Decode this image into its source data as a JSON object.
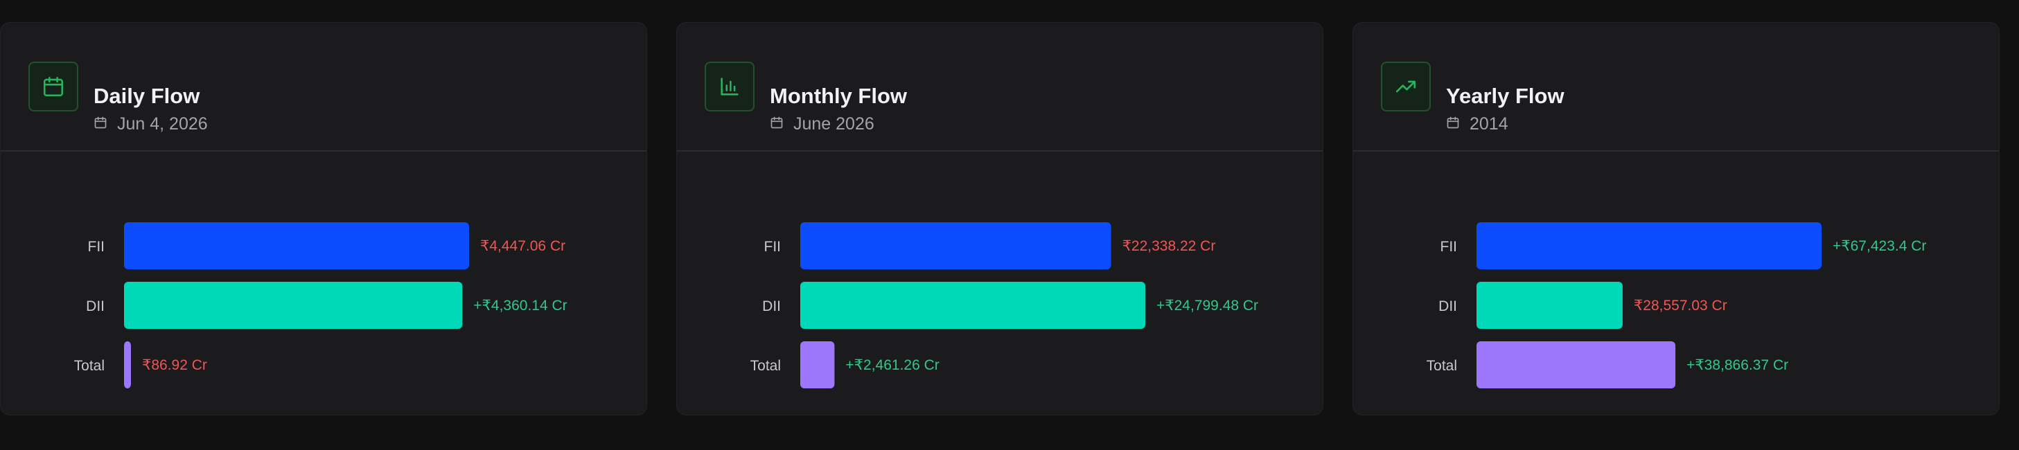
{
  "colors": {
    "fii": "#0b4cff",
    "dii": "#00d9b8",
    "total": "#9c77fb",
    "positive": "#2fc98b",
    "negative": "#ef5656"
  },
  "cards": [
    {
      "title": "Daily Flow",
      "subtitle": "Jun 4, 2026",
      "icon": "calendar-icon"
    },
    {
      "title": "Monthly Flow",
      "subtitle": "June 2026",
      "icon": "bar-chart-icon"
    },
    {
      "title": "Yearly Flow",
      "subtitle": "2014",
      "icon": "trending-up-icon"
    }
  ],
  "chart_data": [
    {
      "type": "bar",
      "orientation": "horizontal",
      "categories": [
        "FII",
        "DII",
        "Total"
      ],
      "values": [
        -4447.06,
        4360.14,
        -86.92
      ],
      "value_labels": [
        "₹4,447.06 Cr",
        "+₹4,360.14 Cr",
        "₹86.92 Cr"
      ],
      "unit": "Cr"
    },
    {
      "type": "bar",
      "orientation": "horizontal",
      "categories": [
        "FII",
        "DII",
        "Total"
      ],
      "values": [
        -22338.22,
        24799.48,
        2461.26
      ],
      "value_labels": [
        "₹22,338.22 Cr",
        "+₹24,799.48 Cr",
        "+₹2,461.26 Cr"
      ],
      "unit": "Cr"
    },
    {
      "type": "bar",
      "orientation": "horizontal",
      "categories": [
        "FII",
        "DII",
        "Total"
      ],
      "values": [
        67423.4,
        -28557.03,
        38866.37
      ],
      "value_labels": [
        "+₹67,423.4 Cr",
        "₹28,557.03 Cr",
        "+₹38,866.37 Cr"
      ],
      "unit": "Cr"
    }
  ]
}
